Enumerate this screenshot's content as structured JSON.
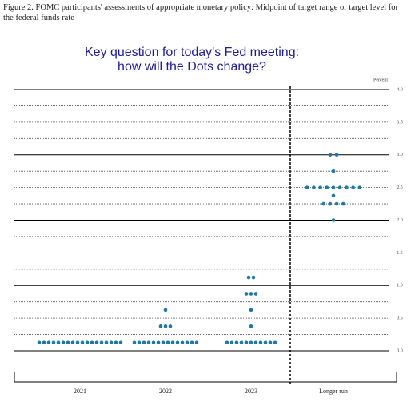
{
  "chart_data": {
    "type": "dot",
    "caption": "Figure 2. FOMC participants' assessments of appropriate monetary policy: Midpoint of target range or target level for the federal funds rate",
    "title": [
      "Key question for today's Fed meeting:",
      "how will the Dots change?"
    ],
    "ylabel": "Percent",
    "categories": [
      "2021",
      "2022",
      "2023",
      "Longer run"
    ],
    "values": [
      [
        0.125,
        0.125,
        0.125,
        0.125,
        0.125,
        0.125,
        0.125,
        0.125,
        0.125,
        0.125,
        0.125,
        0.125,
        0.125,
        0.125,
        0.125,
        0.125,
        0.125,
        0.125
      ],
      [
        0.125,
        0.125,
        0.125,
        0.125,
        0.125,
        0.125,
        0.125,
        0.125,
        0.125,
        0.125,
        0.125,
        0.125,
        0.125,
        0.125,
        0.375,
        0.375,
        0.375,
        0.625
      ],
      [
        0.125,
        0.125,
        0.125,
        0.125,
        0.125,
        0.125,
        0.125,
        0.125,
        0.125,
        0.125,
        0.125,
        0.375,
        0.625,
        0.875,
        0.875,
        0.875,
        1.125,
        1.125
      ],
      [
        2.0,
        2.25,
        2.25,
        2.25,
        2.25,
        2.375,
        2.5,
        2.5,
        2.5,
        2.5,
        2.5,
        2.5,
        2.5,
        2.5,
        2.5,
        2.75,
        3.0,
        3.0
      ]
    ],
    "color": "#1d7aa5",
    "ylim": [
      0,
      4
    ],
    "yticks": [
      {
        "value": 0,
        "label": "0.0"
      },
      {
        "value": 0.5,
        "label": "0.5"
      },
      {
        "value": 1,
        "label": "1.0"
      },
      {
        "value": 1.5,
        "label": "1.5"
      },
      {
        "value": 2,
        "label": "2.0"
      },
      {
        "value": 2.5,
        "label": "2.5"
      },
      {
        "value": 3,
        "label": "3.0"
      },
      {
        "value": 3.5,
        "label": "3.5"
      },
      {
        "value": 4,
        "label": "4.0"
      }
    ],
    "ygrid": [
      0,
      0.25,
      0.5,
      0.75,
      1,
      1.25,
      1.5,
      1.75,
      2,
      2.25,
      2.5,
      2.75,
      3,
      3.25,
      3.5,
      3.75,
      4
    ]
  }
}
